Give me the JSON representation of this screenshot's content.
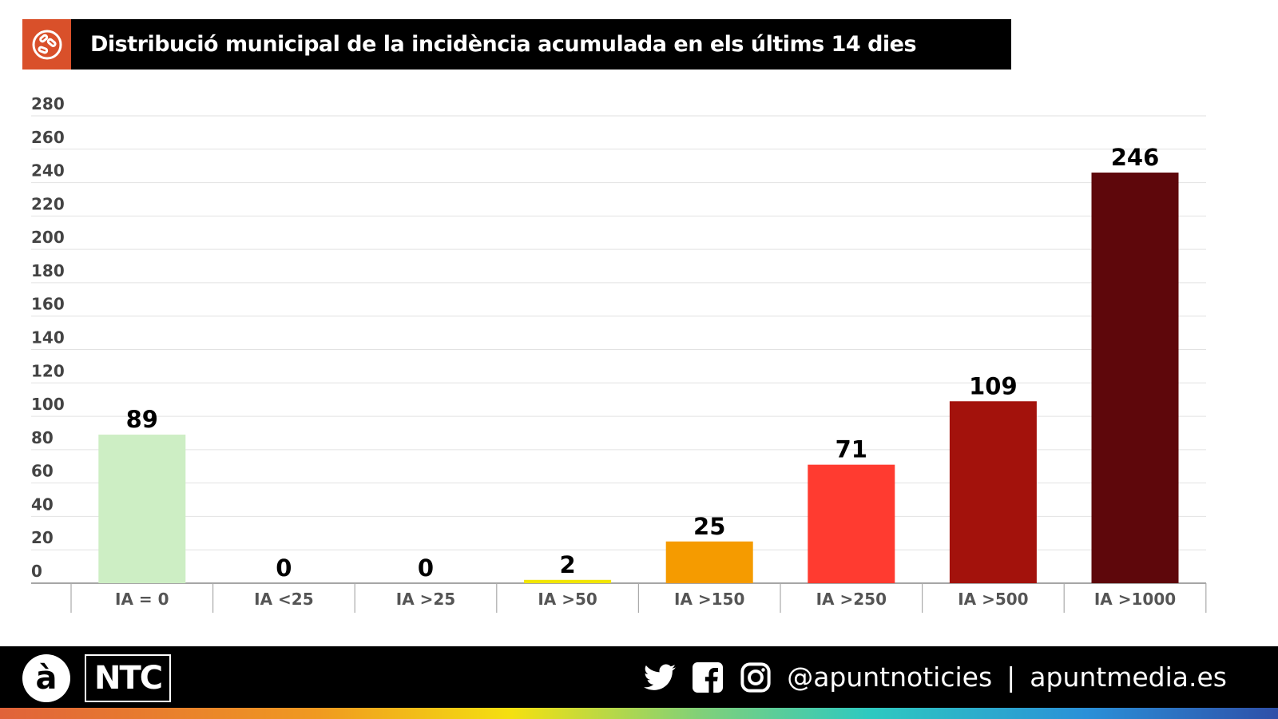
{
  "header": {
    "title": "Distribució municipal de la incidència acumulada en els últims 14 dies",
    "icon": "virus-icon",
    "icon_bg": "#d9502a"
  },
  "chart_data": {
    "type": "bar",
    "title": "Distribució municipal de la incidència acumulada en els últims 14 dies",
    "categories": [
      "IA = 0",
      "IA <25",
      "IA >25",
      "IA >50",
      "IA >150",
      "IA >250",
      "IA >500",
      "IA >1000"
    ],
    "values": [
      89,
      0,
      0,
      2,
      25,
      71,
      109,
      246
    ],
    "colors": [
      "#cdeec4",
      "#cdeec4",
      "#cdeec4",
      "#f2e600",
      "#f59b00",
      "#ff3b30",
      "#a3120c",
      "#5e070b"
    ],
    "ylim": [
      0,
      280
    ],
    "yticks": [
      0,
      20,
      40,
      60,
      80,
      100,
      120,
      140,
      160,
      180,
      200,
      220,
      240,
      260,
      280
    ],
    "grid": true,
    "xlabel": "",
    "ylabel": ""
  },
  "footer": {
    "logo": "à",
    "brand": "NTC",
    "handle": "@apuntnoticies",
    "separator": "|",
    "website": "apuntmedia.es",
    "icons": [
      "twitter-icon",
      "facebook-icon",
      "instagram-icon"
    ]
  }
}
